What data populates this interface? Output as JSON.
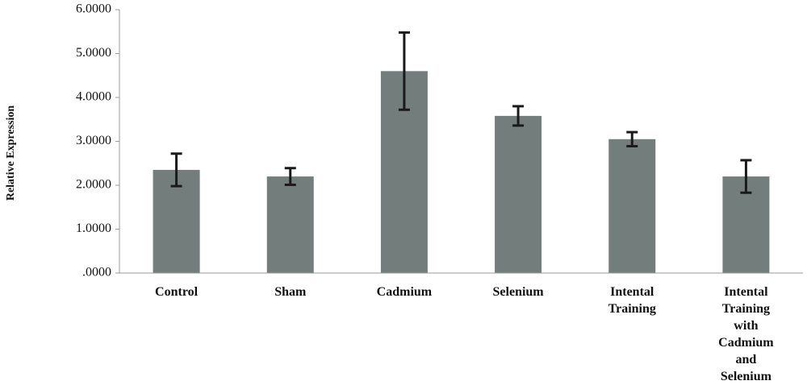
{
  "chart_data": {
    "type": "bar",
    "y_label": "Relative Expression",
    "categories": [
      "Control",
      "Sham",
      "Cadmium",
      "Selenium",
      "Intental Training",
      "Intental Training with Cadmium and Selenium"
    ],
    "values": [
      2.35,
      2.2,
      4.6,
      3.58,
      3.05,
      2.2
    ],
    "errors": [
      0.37,
      0.19,
      0.88,
      0.22,
      0.16,
      0.37
    ],
    "color": "#737d7c",
    "ylim": [
      0,
      6
    ],
    "yticks": [
      {
        "value": 0,
        "label": ".0000"
      },
      {
        "value": 1,
        "label": "1.0000"
      },
      {
        "value": 2,
        "label": "2.0000"
      },
      {
        "value": 3,
        "label": "3.0000"
      },
      {
        "value": 4,
        "label": "4.0000"
      },
      {
        "value": 5,
        "label": "5.0000"
      },
      {
        "value": 6,
        "label": "6.0000"
      }
    ],
    "grid": false
  }
}
